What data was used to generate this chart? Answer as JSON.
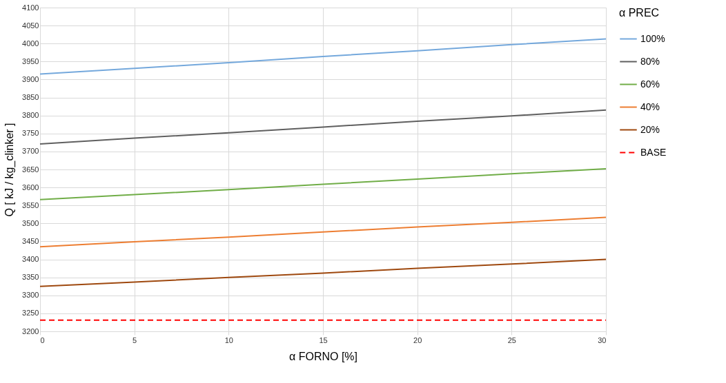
{
  "chart_data": {
    "type": "line",
    "xlabel": "α FORNO  [%]",
    "ylabel": "Q [ kJ / kg_clinker ]",
    "legend_title": "α PREC",
    "legend": "right",
    "grid": true,
    "marker": "none",
    "x": [
      0,
      5,
      10,
      15,
      20,
      25,
      30
    ],
    "xlim": [
      0,
      30
    ],
    "xticks": [
      0,
      5,
      10,
      15,
      20,
      25,
      30
    ],
    "ylim": [
      3200,
      4100
    ],
    "yticks": [
      3200,
      3250,
      3300,
      3350,
      3400,
      3450,
      3500,
      3550,
      3600,
      3650,
      3700,
      3750,
      3800,
      3850,
      3900,
      3950,
      4000,
      4050,
      4100
    ],
    "series": [
      {
        "name": "100%",
        "color": "#74a8dc",
        "line_style": "solid",
        "values": [
          3915,
          3931,
          3947,
          3964,
          3980,
          3997,
          4013
        ]
      },
      {
        "name": "80%",
        "color": "#5f5f5f",
        "line_style": "solid",
        "values": [
          3721,
          3737,
          3752,
          3768,
          3784,
          3799,
          3815
        ]
      },
      {
        "name": "60%",
        "color": "#70ad47",
        "line_style": "solid",
        "values": [
          3566,
          3580,
          3594,
          3609,
          3623,
          3638,
          3652
        ]
      },
      {
        "name": "40%",
        "color": "#ed7d31",
        "line_style": "solid",
        "values": [
          3435,
          3449,
          3462,
          3476,
          3490,
          3503,
          3517
        ]
      },
      {
        "name": "20%",
        "color": "#9e480e",
        "line_style": "solid",
        "values": [
          3325,
          3337,
          3350,
          3362,
          3375,
          3387,
          3400
        ]
      },
      {
        "name": "BASE",
        "color": "#ff0000",
        "line_style": "dashed",
        "values": [
          3231,
          3231,
          3231,
          3231,
          3231,
          3231,
          3231
        ]
      }
    ]
  }
}
